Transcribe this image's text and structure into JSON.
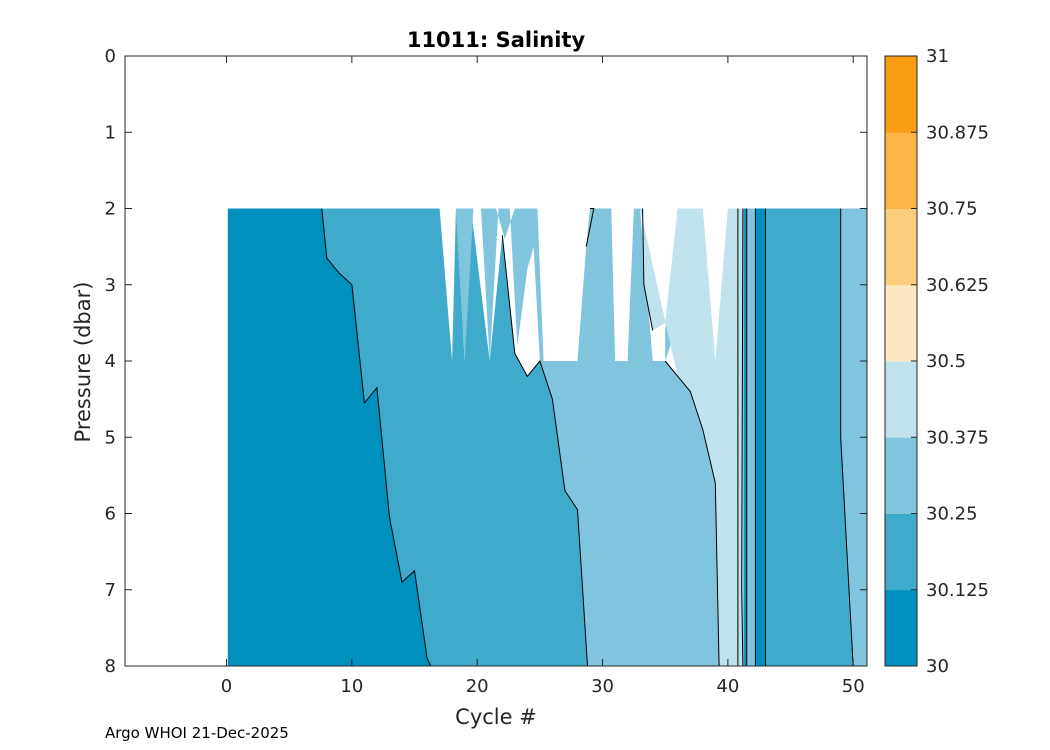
{
  "chart_data": {
    "type": "contour",
    "title": "11011:  Salinity",
    "xlabel": "Cycle #",
    "ylabel": "Pressure (dbar)",
    "xlim": [
      -8.1,
      51.1
    ],
    "ylim": [
      0,
      8
    ],
    "y_reversed": true,
    "x_ticks": [
      0,
      10,
      20,
      30,
      40,
      50
    ],
    "y_ticks": [
      0,
      1,
      2,
      3,
      4,
      5,
      6,
      7,
      8
    ],
    "colorbar": {
      "levels": [
        30,
        30.125,
        30.25,
        30.375,
        30.5,
        30.625,
        30.75,
        30.875,
        31
      ],
      "tick_labels": [
        "30",
        "30.125",
        "30.25",
        "30.375",
        "30.5",
        "30.625",
        "30.75",
        "30.875",
        "31"
      ],
      "colors": [
        "#0090BD",
        "#40AACC",
        "#80C4DE",
        "#C0E2EC",
        "#FCE8C0",
        "#FBCD7C",
        "#FBB546",
        "#F99D13"
      ]
    },
    "regions": [
      {
        "level_index": 0,
        "points": [
          [
            0.1,
            2
          ],
          [
            7.6,
            2
          ],
          [
            8.0,
            2.65
          ],
          [
            9.0,
            2.85
          ],
          [
            10.0,
            3.0
          ],
          [
            11.0,
            4.55
          ],
          [
            12.0,
            4.35
          ],
          [
            13.0,
            6.05
          ],
          [
            14.0,
            6.9
          ],
          [
            15.0,
            6.75
          ],
          [
            16.0,
            7.9
          ],
          [
            16.3,
            8
          ],
          [
            0.1,
            8
          ]
        ]
      },
      {
        "level_index": 1,
        "points": [
          [
            7.6,
            2
          ],
          [
            17.0,
            2
          ],
          [
            18.0,
            4.0
          ],
          [
            18.3,
            2
          ],
          [
            19.0,
            4.0
          ],
          [
            19.5,
            2
          ],
          [
            21.0,
            4.0
          ],
          [
            22.0,
            2.35
          ],
          [
            23.0,
            3.9
          ],
          [
            24.0,
            4.2
          ],
          [
            25.0,
            4.0
          ],
          [
            26.0,
            4.5
          ],
          [
            27.0,
            5.7
          ],
          [
            28.0,
            5.95
          ],
          [
            28.8,
            8
          ],
          [
            16.3,
            8
          ],
          [
            16.0,
            7.9
          ],
          [
            15.0,
            6.75
          ],
          [
            14.0,
            6.9
          ],
          [
            13.0,
            6.05
          ],
          [
            12.0,
            4.35
          ],
          [
            11.0,
            4.55
          ],
          [
            10.0,
            3.0
          ],
          [
            9.0,
            2.85
          ],
          [
            8.0,
            2.65
          ]
        ]
      },
      {
        "level_index": 2,
        "points": [
          [
            17.7,
            2
          ],
          [
            18.3,
            2
          ],
          [
            19.0,
            4.0
          ],
          [
            19.7,
            2
          ],
          [
            20.3,
            2
          ],
          [
            21.0,
            4.0
          ],
          [
            21.7,
            2
          ],
          [
            22.6,
            2
          ],
          [
            23.2,
            3.8
          ],
          [
            24.0,
            2.8
          ],
          [
            24.5,
            2.5
          ],
          [
            25.0,
            4.0
          ],
          [
            30.0,
            4.0
          ],
          [
            30.7,
            2
          ],
          [
            29.0,
            2
          ],
          [
            28.7,
            2.5
          ],
          [
            28.0,
            4.0
          ],
          [
            25.3,
            4.0
          ],
          [
            24.8,
            2
          ],
          [
            23.0,
            2
          ],
          [
            22.2,
            2.4
          ],
          [
            21.5,
            2
          ],
          [
            20.8,
            2
          ],
          [
            20.3,
            2
          ],
          [
            19.5,
            2
          ]
        ]
      },
      {
        "level_index": 2,
        "points": [
          [
            25.0,
            4.0
          ],
          [
            28.0,
            4.0
          ],
          [
            29.0,
            2
          ],
          [
            30.7,
            2
          ],
          [
            31.0,
            4.0
          ],
          [
            32.0,
            4.0
          ],
          [
            32.5,
            2
          ],
          [
            33.0,
            2
          ],
          [
            34.0,
            4.0
          ],
          [
            35.0,
            4.0
          ],
          [
            35.0,
            3.6
          ],
          [
            36.0,
            2
          ],
          [
            37.0,
            2
          ],
          [
            36.0,
            3.5
          ],
          [
            35.0,
            4.0
          ],
          [
            36.0,
            4.2
          ],
          [
            37.0,
            4.4
          ],
          [
            38.0,
            4.9
          ],
          [
            39.0,
            5.6
          ],
          [
            39.3,
            8
          ],
          [
            28.8,
            8
          ],
          [
            28.0,
            5.95
          ],
          [
            27.0,
            5.7
          ],
          [
            26.0,
            4.5
          ]
        ]
      },
      {
        "level_index": 3,
        "points": [
          [
            33.0,
            2
          ],
          [
            33.2,
            2
          ],
          [
            33.3,
            3.0
          ],
          [
            34.0,
            3.6
          ],
          [
            35.0,
            3.5
          ],
          [
            36.0,
            2
          ],
          [
            38.0,
            2
          ],
          [
            39.0,
            4.0
          ],
          [
            40.0,
            2
          ],
          [
            41.2,
            2
          ],
          [
            41.2,
            8
          ],
          [
            39.3,
            8
          ],
          [
            39.0,
            5.6
          ],
          [
            38.0,
            4.9
          ],
          [
            37.0,
            4.4
          ],
          [
            36.0,
            4.2
          ],
          [
            35.3,
            3.7
          ]
        ]
      },
      {
        "level_index": 1,
        "points": [
          [
            42.2,
            2
          ],
          [
            49.0,
            2
          ],
          [
            49.0,
            5.0
          ],
          [
            49.5,
            6.5
          ],
          [
            50.0,
            8
          ],
          [
            42.2,
            8
          ]
        ]
      },
      {
        "level_index": 2,
        "points": [
          [
            49.0,
            2
          ],
          [
            51.1,
            2
          ],
          [
            51.1,
            8
          ],
          [
            50.0,
            8
          ],
          [
            49.5,
            6.5
          ],
          [
            49.0,
            5.0
          ]
        ]
      },
      {
        "level_index": 2,
        "points": [
          [
            41.2,
            2
          ],
          [
            42.2,
            2
          ],
          [
            42.2,
            8
          ],
          [
            41.2,
            8
          ]
        ]
      },
      {
        "level_index": 0,
        "points": [
          [
            41.3,
            2
          ],
          [
            41.5,
            2
          ],
          [
            41.5,
            8
          ],
          [
            41.3,
            8
          ]
        ]
      },
      {
        "level_index": 0,
        "points": [
          [
            42.2,
            2
          ],
          [
            43.0,
            2
          ],
          [
            43.0,
            8
          ],
          [
            42.2,
            8
          ]
        ]
      }
    ],
    "contour_lines": [
      [
        [
          7.6,
          2
        ],
        [
          8.0,
          2.65
        ],
        [
          9.0,
          2.85
        ],
        [
          10.0,
          3.0
        ],
        [
          11.0,
          4.55
        ],
        [
          12.0,
          4.35
        ],
        [
          13.0,
          6.05
        ],
        [
          14.0,
          6.9
        ],
        [
          15.0,
          6.75
        ],
        [
          16.0,
          7.9
        ],
        [
          16.3,
          8
        ]
      ],
      [
        [
          22.0,
          2.35
        ],
        [
          23.0,
          3.9
        ],
        [
          24.0,
          4.2
        ],
        [
          25.0,
          4.0
        ],
        [
          26.0,
          4.5
        ],
        [
          27.0,
          5.7
        ],
        [
          28.0,
          5.95
        ],
        [
          28.8,
          8
        ]
      ],
      [
        [
          29.0,
          2
        ],
        [
          29.3,
          2.0
        ],
        [
          28.7,
          2.5
        ]
      ],
      [
        [
          33.2,
          2
        ],
        [
          33.3,
          3.0
        ],
        [
          34.0,
          3.6
        ]
      ],
      [
        [
          35.0,
          4.0
        ],
        [
          36.0,
          4.2
        ],
        [
          37.0,
          4.4
        ],
        [
          38.0,
          4.9
        ],
        [
          39.0,
          5.6
        ],
        [
          39.3,
          8
        ]
      ],
      [
        [
          40.8,
          2
        ],
        [
          40.8,
          8
        ]
      ],
      [
        [
          41.2,
          2
        ],
        [
          41.1,
          7.0
        ],
        [
          41.2,
          8
        ]
      ],
      [
        [
          41.5,
          2
        ],
        [
          41.5,
          8
        ]
      ],
      [
        [
          42.2,
          2
        ],
        [
          42.2,
          8
        ]
      ],
      [
        [
          43.0,
          2
        ],
        [
          43.0,
          8
        ]
      ],
      [
        [
          49.0,
          2
        ],
        [
          49.0,
          5.0
        ],
        [
          49.5,
          6.5
        ],
        [
          50.0,
          8
        ]
      ]
    ]
  },
  "footer": "Argo WHOI 21-Dec-2025"
}
